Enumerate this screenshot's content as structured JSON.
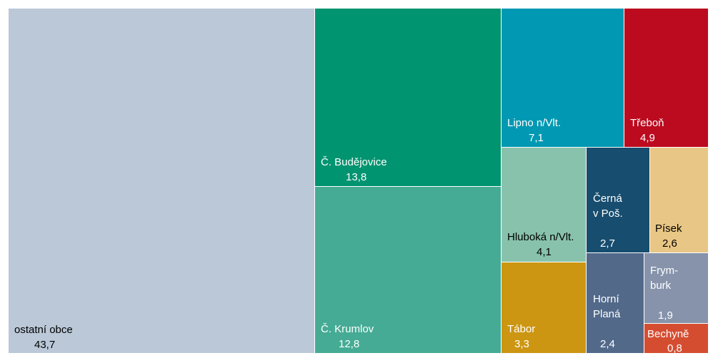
{
  "chart_data": {
    "type": "treemap",
    "title": "",
    "items": [
      {
        "label": "ostatní obce",
        "value_label": "43,7",
        "value": 43.7,
        "color": "#bac8d8",
        "text_color": "#000000"
      },
      {
        "label": "Č. Budějovice",
        "value_label": "13,8",
        "value": 13.8,
        "color": "#009470",
        "text_color": "#ffffff"
      },
      {
        "label": "Č. Krumlov",
        "value_label": "12,8",
        "value": 12.8,
        "color": "#45ab94",
        "text_color": "#ffffff"
      },
      {
        "label": "Lipno n/Vlt.",
        "value_label": "7,1",
        "value": 7.1,
        "color": "#0098b2",
        "text_color": "#ffffff"
      },
      {
        "label": "Třeboň",
        "value_label": "4,9",
        "value": 4.9,
        "color": "#bc0a1f",
        "text_color": "#ffffff"
      },
      {
        "label": "Hluboká n/Vlt.",
        "value_label": "4,1",
        "value": 4.1,
        "color": "#88c2ad",
        "text_color": "#000000"
      },
      {
        "label": "Černá\nv Poš.",
        "value_label": "2,7",
        "value": 2.7,
        "color": "#174d6e",
        "text_color": "#ffffff"
      },
      {
        "label": "Písek",
        "value_label": "2,6",
        "value": 2.6,
        "color": "#e8c685",
        "text_color": "#000000"
      },
      {
        "label": "Tábor",
        "value_label": "3,3",
        "value": 3.3,
        "color": "#cc9612",
        "text_color": "#ffffff"
      },
      {
        "label": "Horní\nPlaná",
        "value_label": "2,4",
        "value": 2.4,
        "color": "#52698a",
        "text_color": "#ffffff"
      },
      {
        "label": "Frym-\nburk",
        "value_label": "1,9",
        "value": 1.9,
        "color": "#8693ab",
        "text_color": "#ffffff"
      },
      {
        "label": "Bechyně",
        "value_label": "0,8",
        "value": 0.8,
        "color": "#d54d31",
        "text_color": "#ffffff"
      }
    ]
  }
}
